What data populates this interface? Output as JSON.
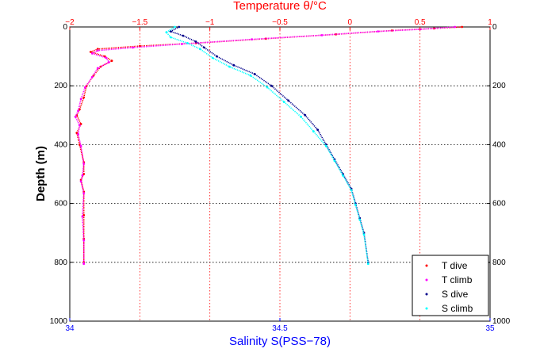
{
  "colors": {
    "t_dive": "#ff0000",
    "t_climb": "#ff00ff",
    "s_dive": "#00008b",
    "s_climb": "#00ffff",
    "top_axis": "#ff0000",
    "bottom_axis": "#0000ff",
    "grid": "#ff0000"
  },
  "chart_data": {
    "type": "scatter",
    "title": "",
    "top_axis": {
      "label": "Temperature θ/°C",
      "range": [
        -2,
        1
      ],
      "ticks": [
        -2,
        -1.5,
        -1,
        -0.5,
        0,
        0.5,
        1
      ],
      "tick_labels": [
        "−2",
        "−1.5",
        "−1",
        "−0.5",
        "0",
        "0.5",
        "1"
      ]
    },
    "bottom_axis": {
      "label": "Salinity S(PSS−78)",
      "range": [
        34,
        35
      ],
      "ticks": [
        34,
        34.5,
        35
      ],
      "tick_labels": [
        "34",
        "34.5",
        "35"
      ]
    },
    "y_axis": {
      "label": "Depth (m)",
      "range": [
        0,
        1000
      ],
      "reversed": true,
      "ticks": [
        0,
        200,
        400,
        600,
        800,
        1000
      ],
      "tick_labels": [
        "0",
        "200",
        "400",
        "600",
        "800",
        "1000"
      ]
    },
    "grid": true,
    "legend_position": "bottom-right",
    "series": [
      {
        "name": "T dive",
        "key": "t_dive",
        "axis": "temperature",
        "x": [
          0.8,
          0.6,
          0.3,
          -0.1,
          -0.6,
          -1.1,
          -1.5,
          -1.8,
          -1.85,
          -1.75,
          -1.7,
          -1.78,
          -1.83,
          -1.88,
          -1.9,
          -1.93,
          -1.95,
          -1.92,
          -1.95,
          -1.93,
          -1.9,
          -1.9,
          -1.92,
          -1.9,
          -1.9,
          -1.9,
          -1.9
        ],
        "y": [
          0,
          5,
          12,
          25,
          40,
          55,
          65,
          75,
          85,
          100,
          115,
          135,
          165,
          200,
          240,
          280,
          300,
          330,
          360,
          400,
          460,
          500,
          520,
          560,
          640,
          720,
          800
        ]
      },
      {
        "name": "T climb",
        "key": "t_climb",
        "axis": "temperature",
        "x": [
          0.75,
          0.5,
          0.2,
          -0.2,
          -0.7,
          -1.2,
          -1.55,
          -1.8,
          -1.84,
          -1.74,
          -1.72,
          -1.8,
          -1.84,
          -1.89,
          -1.92,
          -1.94,
          -1.96,
          -1.93,
          -1.94,
          -1.92,
          -1.9,
          -1.91,
          -1.92,
          -1.9,
          -1.91,
          -1.9,
          -1.9
        ],
        "y": [
          0,
          8,
          15,
          28,
          42,
          58,
          70,
          80,
          90,
          105,
          120,
          140,
          170,
          205,
          245,
          285,
          305,
          335,
          365,
          405,
          465,
          505,
          525,
          565,
          645,
          725,
          805
        ]
      },
      {
        "name": "S dive",
        "key": "s_dive",
        "axis": "salinity",
        "x": [
          34.26,
          34.24,
          34.27,
          34.3,
          34.32,
          34.35,
          34.39,
          34.44,
          34.48,
          34.52,
          34.56,
          34.59,
          34.61,
          34.63,
          34.65,
          34.67,
          34.68,
          34.69,
          34.7,
          34.71
        ],
        "y": [
          0,
          15,
          30,
          50,
          70,
          100,
          130,
          160,
          200,
          250,
          300,
          350,
          400,
          450,
          500,
          550,
          600,
          650,
          700,
          800
        ]
      },
      {
        "name": "S climb",
        "key": "s_climb",
        "axis": "salinity",
        "x": [
          34.25,
          34.23,
          34.24,
          34.28,
          34.31,
          34.34,
          34.38,
          34.43,
          34.47,
          34.51,
          34.55,
          34.58,
          34.61,
          34.63,
          34.65,
          34.67,
          34.68,
          34.69,
          34.7,
          34.71
        ],
        "y": [
          0,
          18,
          35,
          55,
          75,
          105,
          135,
          165,
          205,
          255,
          305,
          355,
          405,
          455,
          505,
          555,
          605,
          655,
          705,
          805
        ]
      }
    ]
  }
}
